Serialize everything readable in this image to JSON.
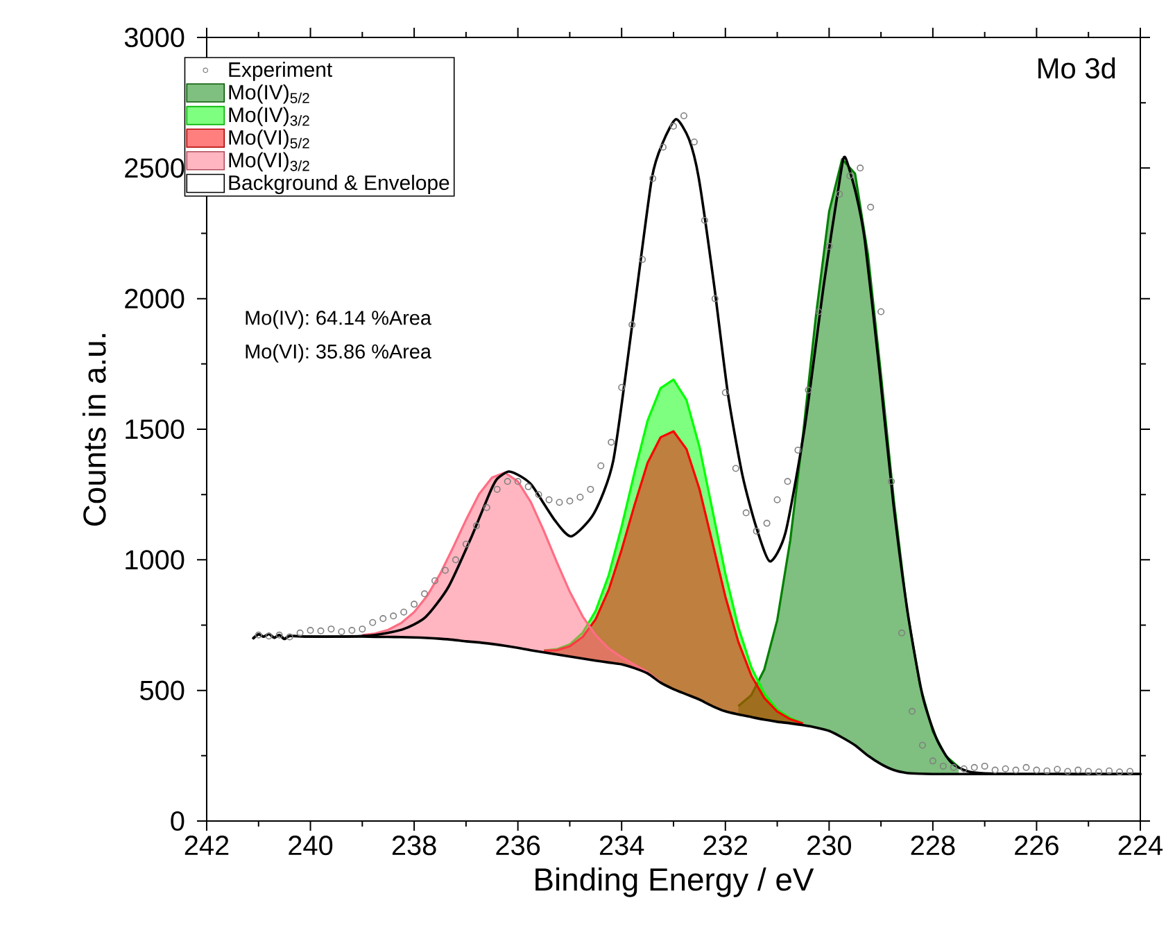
{
  "chart_data": {
    "type": "line",
    "xlabel": "Binding Energy / eV",
    "ylabel": "Counts in a.u.",
    "xlim": [
      242,
      224
    ],
    "ylim": [
      0,
      3000
    ],
    "xticks": [
      242,
      240,
      238,
      236,
      234,
      232,
      230,
      228,
      226,
      224
    ],
    "yticks": [
      0,
      500,
      1000,
      1500,
      2000,
      2500,
      3000
    ],
    "legend": "top left",
    "annotations": [
      "Mo 3d",
      "Mo(IV): 64.14 %Area",
      "Mo(VI): 35.86 %Area"
    ],
    "series": [
      {
        "name": "Experiment",
        "type": "scatter",
        "marker": "circle",
        "color": "#808080",
        "x": [
          241.0,
          240.8,
          240.6,
          240.4,
          240.2,
          240.0,
          239.8,
          239.6,
          239.4,
          239.2,
          239.0,
          238.8,
          238.6,
          238.4,
          238.2,
          238.0,
          237.8,
          237.6,
          237.4,
          237.2,
          237.0,
          236.8,
          236.6,
          236.4,
          236.2,
          236.0,
          235.8,
          235.6,
          235.4,
          235.2,
          235.0,
          234.8,
          234.6,
          234.4,
          234.2,
          234.0,
          233.8,
          233.6,
          233.4,
          233.2,
          233.0,
          232.8,
          232.6,
          232.4,
          232.2,
          232.0,
          231.8,
          231.6,
          231.4,
          231.2,
          231.0,
          230.8,
          230.6,
          230.4,
          230.2,
          230.0,
          229.8,
          229.6,
          229.4,
          229.2,
          229.0,
          228.8,
          228.6,
          228.4,
          228.2,
          228.0,
          227.8,
          227.6,
          227.4,
          227.2,
          227.0,
          226.8,
          226.6,
          226.4,
          226.2,
          226.0,
          225.8,
          225.6,
          225.4,
          225.2,
          225.0,
          224.8,
          224.6,
          224.4,
          224.2
        ],
        "values": [
          712,
          708,
          712,
          705,
          720,
          730,
          728,
          735,
          725,
          730,
          735,
          760,
          775,
          785,
          800,
          830,
          870,
          920,
          960,
          1000,
          1060,
          1130,
          1200,
          1270,
          1300,
          1300,
          1280,
          1250,
          1230,
          1220,
          1225,
          1240,
          1270,
          1360,
          1450,
          1660,
          1900,
          2150,
          2460,
          2580,
          2660,
          2700,
          2600,
          2300,
          2000,
          1640,
          1350,
          1180,
          1110,
          1140,
          1230,
          1300,
          1420,
          1650,
          1950,
          2200,
          2400,
          2470,
          2500,
          2350,
          1950,
          1300,
          720,
          420,
          290,
          230,
          210,
          205,
          200,
          205,
          210,
          195,
          200,
          195,
          205,
          195,
          192,
          198,
          190,
          195,
          190,
          188,
          192,
          188,
          190
        ]
      },
      {
        "name": "Mo(IV)$_{5/2}$",
        "type": "area",
        "color": "#008000",
        "x": [
          231.75,
          231.5,
          231.25,
          231,
          230.75,
          230.5,
          230.25,
          230,
          229.75,
          229.5,
          229.25,
          229,
          228.75,
          228.5,
          228.25,
          228,
          227.75,
          227.5
        ],
        "values": [
          440,
          482,
          580,
          769,
          1074,
          1485,
          1941,
          2333,
          2534,
          2479,
          2168,
          1709,
          1224,
          812,
          521,
          343,
          249,
          206
        ]
      },
      {
        "name": "Mo(IV)$_{3/2}$",
        "type": "area",
        "color": "#00ff00",
        "x": [
          235.5,
          235.25,
          235,
          234.75,
          234.5,
          234.25,
          234,
          233.75,
          233.5,
          233.25,
          233,
          232.75,
          232.5,
          232.25,
          232,
          231.75,
          231.5,
          231.25,
          231,
          230.75,
          230.5
        ],
        "values": [
          653,
          658,
          676,
          721,
          805,
          941,
          1127,
          1336,
          1533,
          1657,
          1690,
          1612,
          1433,
          1191,
          947,
          742,
          589,
          487,
          426,
          394,
          374
        ]
      },
      {
        "name": "Mo(VI)$_{5/2}$",
        "type": "area",
        "color": "#ff0000",
        "x": [
          235.5,
          235.25,
          235,
          234.75,
          234.5,
          234.25,
          234,
          233.75,
          233.5,
          233.25,
          233,
          232.75,
          232.5,
          232.25,
          232,
          231.75,
          231.5,
          231.25,
          231,
          230.75,
          230.5
        ],
        "values": [
          652,
          654,
          669,
          705,
          773,
          885,
          1039,
          1211,
          1371,
          1469,
          1492,
          1424,
          1271,
          1066,
          859,
          686,
          557,
          471,
          419,
          390,
          373
        ]
      },
      {
        "name": "Mo(VI)$_{3/2}$",
        "type": "area",
        "color": "#ff6d83",
        "x": [
          239.0,
          238.75,
          238.5,
          238.25,
          238,
          237.75,
          237.5,
          237.25,
          237,
          236.75,
          236.5,
          236.25,
          236,
          235.75,
          235.5,
          235.25,
          235,
          234.75,
          234.5,
          234.25,
          234,
          233.75,
          233.5,
          233.25
        ],
        "values": [
          712,
          718,
          732,
          758,
          800,
          862,
          946,
          1047,
          1153,
          1251,
          1315,
          1334,
          1300,
          1221,
          1111,
          991,
          878,
          783,
          711,
          661,
          627,
          598,
          571,
          532
        ]
      },
      {
        "name": "Background & Envelope",
        "color": "#000000",
        "x": [
          241.1,
          241.0,
          240.9,
          240.8,
          240.7,
          240.6,
          240.5,
          240.4,
          240.0,
          239.5,
          238.85,
          238.23,
          237.78,
          237.34,
          236.89,
          236.54,
          236.4,
          236.18,
          235.95,
          235.73,
          235.29,
          234.97,
          234.53,
          234.16,
          233.79,
          233.42,
          233.2,
          232.95,
          232.7,
          232.51,
          232.22,
          231.95,
          231.67,
          231.4,
          231.14,
          230.84,
          230.47,
          230.1,
          229.78,
          229.69,
          229.48,
          229.31,
          229.03,
          228.76,
          228.48,
          228.2,
          227.93,
          227.65,
          227.28,
          226.5,
          224
        ],
        "values": [
          700,
          715,
          706,
          716,
          702,
          712,
          697,
          708,
          706,
          706,
          710,
          733,
          781,
          896,
          1090,
          1258,
          1310,
          1338,
          1320,
          1285,
          1152,
          1090,
          1179,
          1381,
          1909,
          2458,
          2600,
          2687,
          2610,
          2458,
          2056,
          1635,
          1323,
          1122,
          994,
          1105,
          1508,
          2056,
          2475,
          2541,
          2400,
          2221,
          1726,
          1214,
          792,
          481,
          316,
          225,
          188,
          180,
          180
        ]
      },
      {
        "color": "#000000",
        "x": [
          241.1,
          241.0,
          240.9,
          240.8,
          240.7,
          240.6,
          240.5,
          240.4,
          240.0,
          239.5,
          239.25,
          239,
          238.75,
          238.5,
          238.25,
          238,
          237.75,
          237.5,
          237.25,
          237,
          236.75,
          236.5,
          236.25,
          236,
          235.75,
          235.5,
          235.25,
          235,
          234.75,
          234.5,
          234.25,
          234,
          233.75,
          233.5,
          233.25,
          233,
          232.75,
          232.5,
          232.25,
          232,
          231.75,
          231.5,
          231.25,
          231,
          230.75,
          230.5,
          230.25,
          230,
          229.75,
          229.5,
          229.25,
          229,
          228.75,
          228.5,
          228.25,
          228,
          227.5,
          227,
          226,
          225,
          224
        ],
        "values": [
          700,
          715,
          706,
          716,
          702,
          712,
          697,
          708,
          706,
          706,
          706,
          706,
          705,
          705,
          704,
          703,
          701,
          698,
          694,
          688,
          684,
          678,
          671,
          663,
          654,
          646,
          638,
          630,
          622,
          614,
          607,
          600,
          585,
          565,
          530,
          505,
          485,
          465,
          440,
          420,
          408,
          398,
          388,
          380,
          374,
          367,
          358,
          345,
          320,
          290,
          250,
          218,
          195,
          184,
          181,
          180,
          180,
          180,
          180,
          180,
          180
        ]
      }
    ]
  }
}
